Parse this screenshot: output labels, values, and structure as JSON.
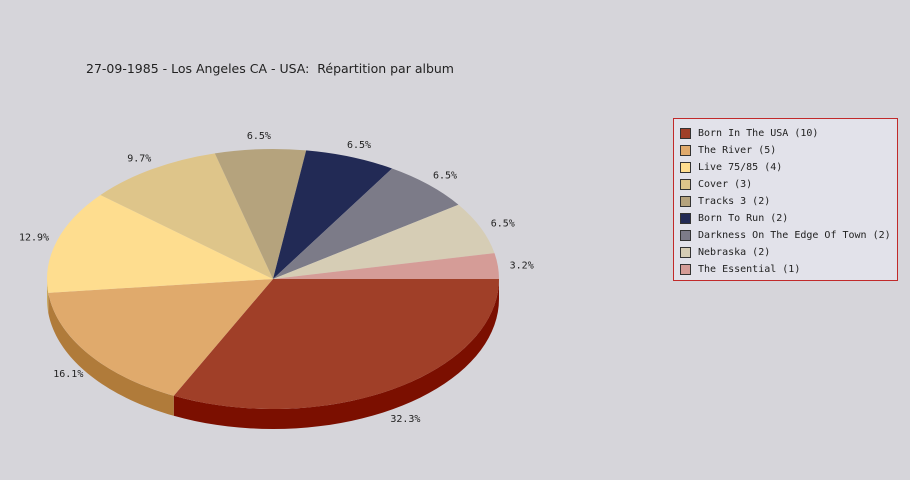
{
  "chart_data": {
    "type": "pie",
    "title": "27-09-1985 - Los Angeles CA - USA:  Répartition par album",
    "legend_position": "right",
    "slices": [
      {
        "name": "Born In The USA",
        "count": 10,
        "legend": "Born In The USA (10)",
        "percent": 32.3,
        "label": "32.3%",
        "color": "#a03f28",
        "side": "#7b0f00"
      },
      {
        "name": "The River",
        "count": 5,
        "legend": "The River (5)",
        "percent": 16.1,
        "label": "16.1%",
        "color": "#e0aa6c",
        "side": "#b07b3a"
      },
      {
        "name": "Live 75/85",
        "count": 4,
        "legend": "Live 75/85 (4)",
        "percent": 12.9,
        "label": "12.9%",
        "color": "#fedd8f",
        "side": "#c9a85c"
      },
      {
        "name": "Cover",
        "count": 3,
        "legend": "Cover (3)",
        "percent": 9.7,
        "label": "9.7%",
        "color": "#dec58a",
        "side": "#a98f55"
      },
      {
        "name": "Tracks 3",
        "count": 2,
        "legend": "Tracks 3 (2)",
        "percent": 6.5,
        "label": "6.5%",
        "color": "#b5a37d",
        "side": "#85744f"
      },
      {
        "name": "Born To Run",
        "count": 2,
        "legend": "Born To Run (2)",
        "percent": 6.5,
        "label": "6.5%",
        "color": "#222a55",
        "side": "#10163a"
      },
      {
        "name": "Darkness On The Edge Of Town",
        "count": 2,
        "legend": "Darkness On The Edge Of Town (2)",
        "percent": 6.5,
        "label": "6.5%",
        "color": "#7c7b88",
        "side": "#55545f"
      },
      {
        "name": "Nebraska",
        "count": 2,
        "legend": "Nebraska (2)",
        "percent": 6.5,
        "label": "6.5%",
        "color": "#d6cdb5",
        "side": "#a89f88"
      },
      {
        "name": "The Essential",
        "count": 1,
        "legend": "The Essential (1)",
        "percent": 3.2,
        "label": "3.2%",
        "color": "#d59c97",
        "side": "#a5706b"
      }
    ]
  }
}
